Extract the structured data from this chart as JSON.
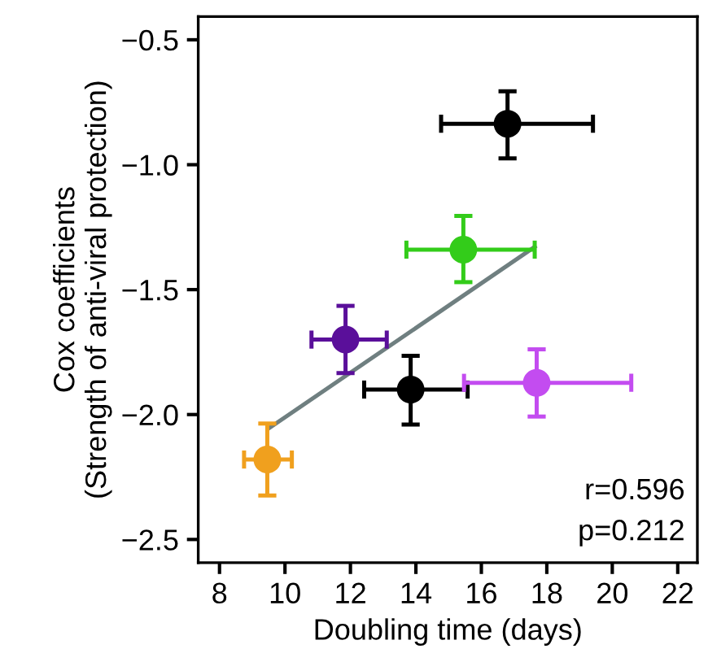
{
  "chart_data": {
    "type": "scatter",
    "xlabel": "Doubling time (days)",
    "ylabel": "Cox coefficients\n(Strength of anti-viral protection)",
    "xlim": [
      7.35,
      22.6
    ],
    "ylim": [
      -2.593,
      -0.407
    ],
    "xticks": [
      8,
      10,
      12,
      14,
      16,
      18,
      20,
      22
    ],
    "yticks": [
      {
        "value": -0.5,
        "label": "−0.5"
      },
      {
        "value": -1.0,
        "label": "−1.0"
      },
      {
        "value": -1.5,
        "label": "−1.5"
      },
      {
        "value": -2.0,
        "label": "−2.0"
      },
      {
        "value": -2.5,
        "label": "−2.5"
      }
    ],
    "grid": false,
    "annotations": [
      "r=0.596",
      "p=0.212"
    ],
    "series": [
      {
        "marker": "circle",
        "x": [
          16.8,
          15.45,
          11.85,
          13.84,
          17.69,
          9.46
        ],
        "values": [
          -0.836,
          -1.34,
          -1.7,
          -1.9,
          -1.873,
          -2.18
        ],
        "colors": [
          "#000000",
          "#33cc1a",
          "#5a0f9a",
          "#000000",
          "#c34cf0",
          "#f0a01e"
        ],
        "errors": [
          [
            -0.975,
            -0.706
          ],
          [
            -1.47,
            -1.205
          ],
          [
            -1.834,
            -1.565
          ],
          [
            -2.04,
            -1.765
          ],
          [
            -2.008,
            -1.739
          ],
          [
            -2.324,
            -2.036
          ]
        ],
        "xerrors": [
          [
            14.77,
            19.41
          ],
          [
            13.71,
            17.63
          ],
          [
            10.81,
            13.11
          ],
          [
            12.42,
            15.58
          ],
          [
            15.47,
            20.58
          ],
          [
            8.75,
            10.21
          ]
        ]
      },
      {
        "type": "line",
        "x": [
          9.51,
          17.63
        ],
        "values": [
          -2.055,
          -1.329
        ],
        "color": "#6f7f80",
        "line_style": "solid"
      }
    ]
  }
}
